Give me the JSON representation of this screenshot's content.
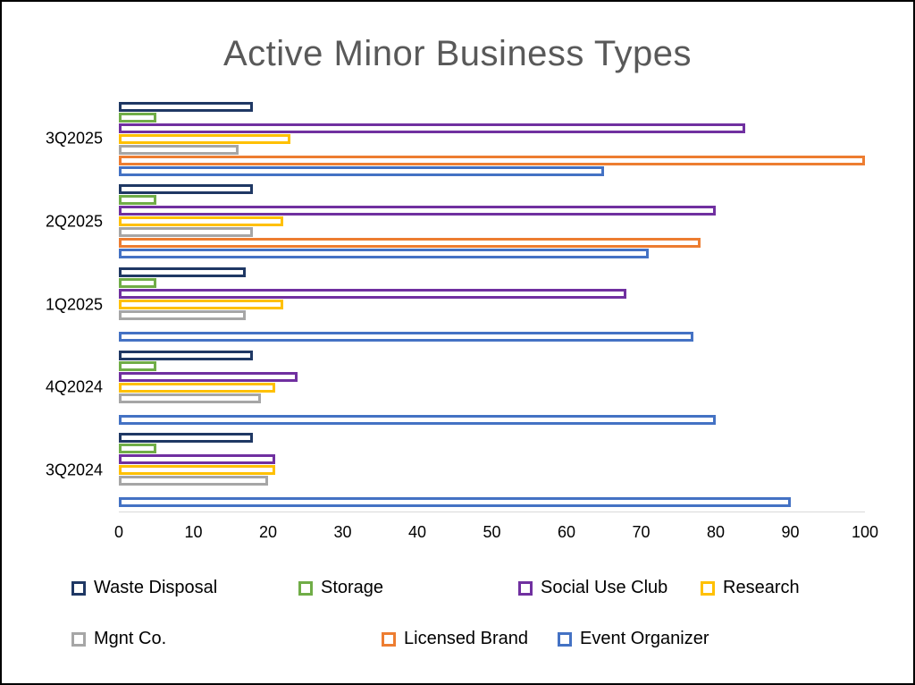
{
  "chart_data": {
    "type": "bar",
    "orientation": "horizontal",
    "title": "Active Minor Business Types",
    "title_color": "#595959",
    "categories": [
      "3Q2025",
      "2Q2025",
      "1Q2025",
      "4Q2024",
      "3Q2024"
    ],
    "series": [
      {
        "name": "Waste Disposal",
        "color": "#1F3864",
        "values": [
          18,
          18,
          17,
          18,
          18
        ]
      },
      {
        "name": "Storage",
        "color": "#70AD47",
        "values": [
          5,
          5,
          5,
          5,
          5
        ]
      },
      {
        "name": "Social Use Club",
        "color": "#7030A0",
        "values": [
          84,
          80,
          68,
          24,
          21
        ]
      },
      {
        "name": "Research",
        "color": "#FFC000",
        "values": [
          23,
          22,
          22,
          21,
          21
        ]
      },
      {
        "name": "Mgnt Co.",
        "color": "#A6A6A6",
        "values": [
          16,
          18,
          17,
          19,
          20
        ]
      },
      {
        "name": "Licensed Brand",
        "color": "#ED7D31",
        "values": [
          100,
          78,
          0,
          0,
          0
        ]
      },
      {
        "name": "Event Organizer",
        "color": "#4472C4",
        "values": [
          65,
          71,
          77,
          80,
          90
        ]
      }
    ],
    "xlabel": "",
    "ylabel": "",
    "xlim": [
      0,
      100
    ],
    "x_ticks": [
      0,
      10,
      20,
      30,
      40,
      50,
      60,
      70,
      80,
      90,
      100
    ],
    "bar_style": "hollow-outline-white-fill",
    "grid": false,
    "axis_line_color": "#d9d9d9",
    "legend_position": "bottom",
    "legend_rows": [
      [
        "Waste Disposal",
        "Storage",
        "Social Use Club",
        "Research"
      ],
      [
        "Mgnt Co.",
        "Licensed Brand",
        "Event Organizer"
      ]
    ]
  }
}
